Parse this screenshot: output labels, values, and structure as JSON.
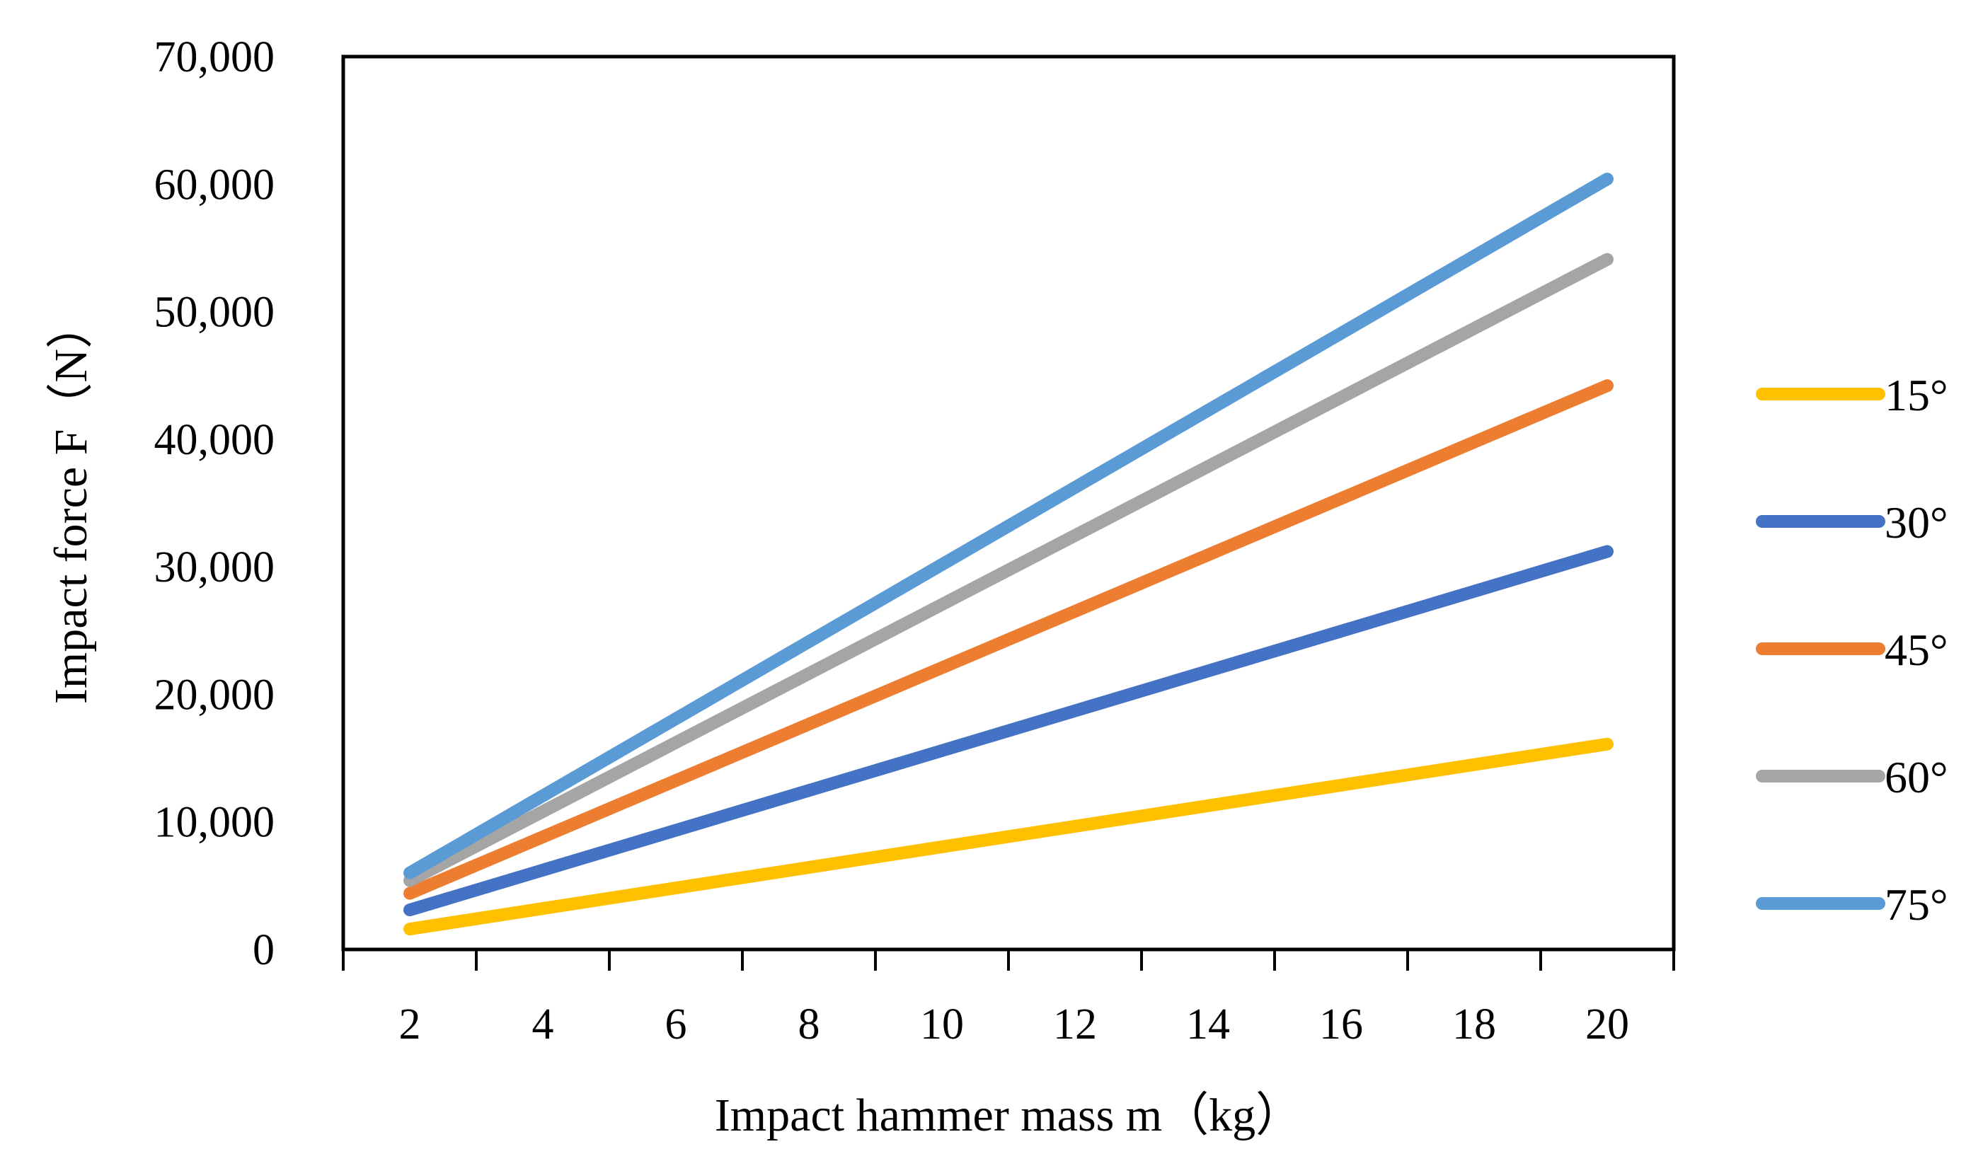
{
  "chart_data": {
    "type": "line",
    "title": "",
    "xlabel": "Impact hammer mass m（kg）",
    "ylabel": "Impact force F（N）",
    "xlim": [
      1,
      21
    ],
    "ylim": [
      0,
      70000
    ],
    "x_ticks": [
      2,
      4,
      6,
      8,
      10,
      12,
      14,
      16,
      18,
      20
    ],
    "y_ticks": [
      0,
      10000,
      20000,
      30000,
      40000,
      50000,
      60000,
      70000
    ],
    "y_tick_labels": [
      "0",
      "10,000",
      "20,000",
      "30,000",
      "40,000",
      "50,000",
      "60,000",
      "70,000"
    ],
    "x": [
      2,
      20
    ],
    "grid": false,
    "legend_position": "right",
    "series": [
      {
        "name": "15°",
        "color": "#FFC000",
        "values": [
          1600,
          16100
        ]
      },
      {
        "name": "30°",
        "color": "#4472C4",
        "values": [
          3100,
          31200
        ]
      },
      {
        "name": "45°",
        "color": "#ED7D31",
        "values": [
          4400,
          44200
        ]
      },
      {
        "name": "60°",
        "color": "#A5A5A5",
        "values": [
          5400,
          54100
        ]
      },
      {
        "name": "75°",
        "color": "#5B9BD5",
        "values": [
          6000,
          60400
        ]
      }
    ]
  }
}
